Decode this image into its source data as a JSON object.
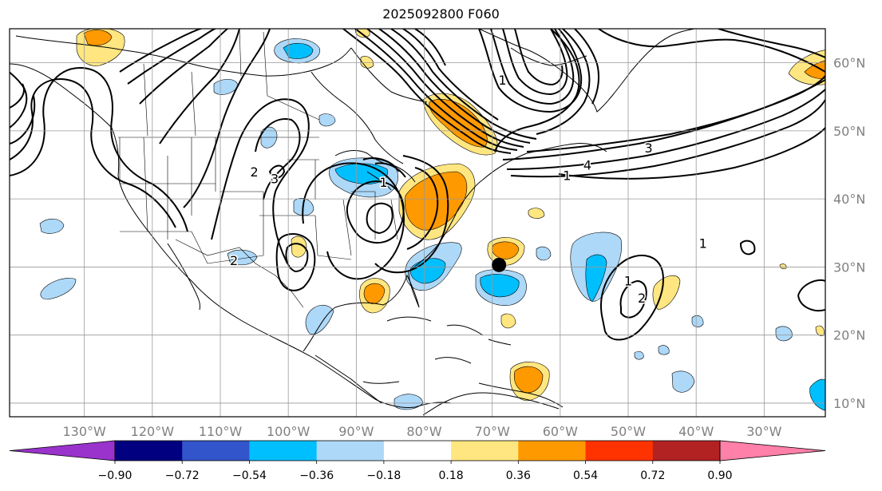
{
  "title": "2025092800 F060",
  "map": {
    "lon_labels": [
      "130°W",
      "120°W",
      "110°W",
      "100°W",
      "90°W",
      "80°W",
      "70°W",
      "60°W",
      "50°W",
      "40°W",
      "30°W"
    ],
    "lat_labels": [
      "60°N",
      "50°N",
      "40°N",
      "30°N",
      "20°N",
      "10°N"
    ],
    "lon_values": [
      -130,
      -120,
      -110,
      -100,
      -90,
      -80,
      -70,
      -60,
      -50,
      -40,
      -30
    ],
    "lat_values": [
      60,
      50,
      40,
      30,
      20,
      10
    ],
    "extent": {
      "lon_min": -141,
      "lon_max": -21,
      "lat_min": 8,
      "lat_max": 65
    },
    "contour_labels": [
      {
        "text": "1",
        "lon": -68.5,
        "lat": 57.5
      },
      {
        "text": "3",
        "lon": -47,
        "lat": 47.5
      },
      {
        "text": "4",
        "lon": -56,
        "lat": 45
      },
      {
        "text": "1",
        "lon": -59,
        "lat": 43.5
      },
      {
        "text": "2",
        "lon": -105,
        "lat": 44
      },
      {
        "text": "3",
        "lon": -102,
        "lat": 43
      },
      {
        "text": "1",
        "lon": -86,
        "lat": 42.5
      },
      {
        "text": "2",
        "lon": -108,
        "lat": 31
      },
      {
        "text": "1",
        "lon": -39,
        "lat": 33.5
      },
      {
        "text": "1",
        "lon": -50,
        "lat": 28
      },
      {
        "text": "2",
        "lon": -48,
        "lat": 25.5
      }
    ],
    "marker": {
      "lon": -69,
      "lat": 30.3,
      "color": "#000000"
    }
  },
  "colorbar": {
    "tick_labels": [
      "−0.90",
      "−0.72",
      "−0.54",
      "−0.36",
      "−0.18",
      "0.18",
      "0.36",
      "0.54",
      "0.72",
      "0.90"
    ],
    "colors": [
      "#9933cc",
      "#000080",
      "#3355cc",
      "#00bfff",
      "#add8f8",
      "#ffffff",
      "#ffe680",
      "#ff9900",
      "#ff3300",
      "#b22222",
      "#ff80a8"
    ]
  }
}
